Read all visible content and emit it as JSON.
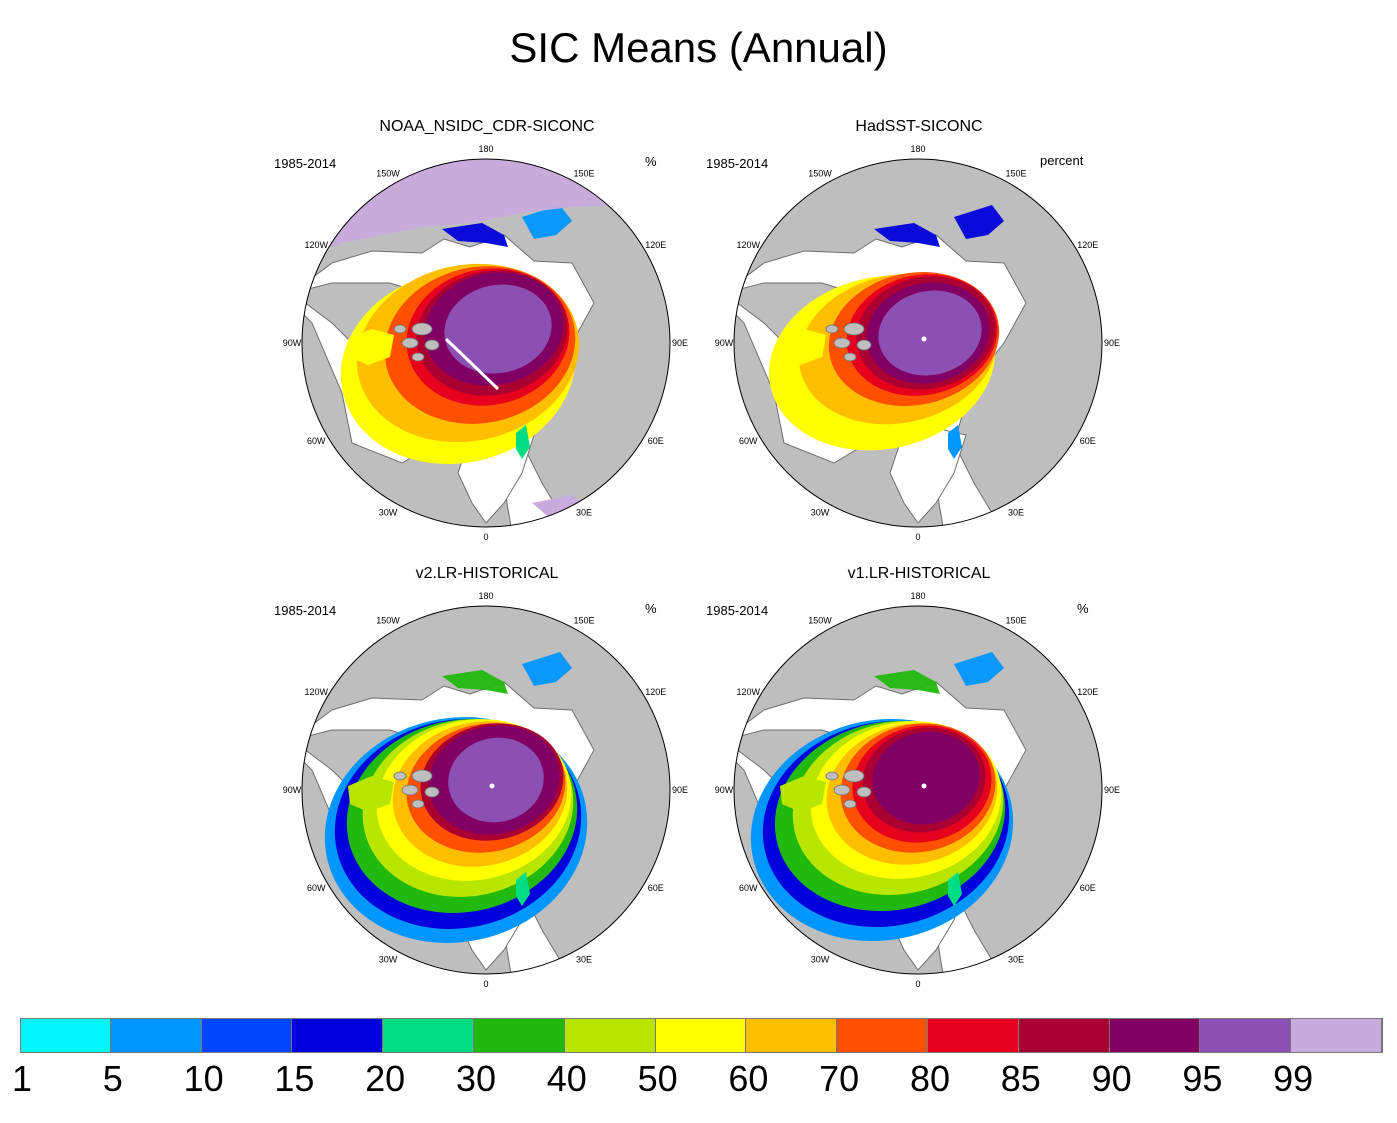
{
  "figure": {
    "title": "SIC Means (Annual)"
  },
  "panels": [
    {
      "title": "NOAA_NSIDC_CDR-SICONC",
      "period": "1985-2014",
      "units": "%"
    },
    {
      "title": "HadSST-SICONC",
      "period": "1985-2014",
      "units": "percent"
    },
    {
      "title": "v2.LR-HISTORICAL",
      "period": "1985-2014",
      "units": "%"
    },
    {
      "title": "v1.LR-HISTORICAL",
      "period": "1985-2014",
      "units": "%"
    }
  ],
  "longitude_labels": [
    "180",
    "150E",
    "120E",
    "90E",
    "60E",
    "30E",
    "0",
    "30W",
    "60W",
    "90W",
    "120W",
    "150W"
  ],
  "colorbar": {
    "levels": [
      "1",
      "5",
      "10",
      "15",
      "20",
      "30",
      "40",
      "50",
      "60",
      "70",
      "80",
      "85",
      "90",
      "95",
      "99"
    ],
    "colors": [
      "#00f5ff",
      "#0096ff",
      "#0046ff",
      "#0000dc",
      "#00dc82",
      "#22b90f",
      "#b9e600",
      "#ffff00",
      "#ffbe00",
      "#ff5000",
      "#e6001e",
      "#aa0032",
      "#800064",
      "#8c50b4",
      "#c8aadc"
    ]
  },
  "map_colors": {
    "land": "#bebebe",
    "ocean": "#ffffff",
    "coastline": "#6e6e6e"
  }
}
